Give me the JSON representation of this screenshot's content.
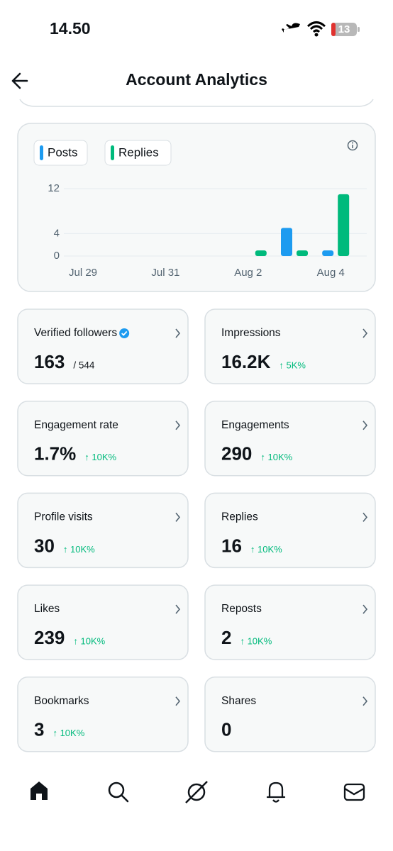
{
  "status_bar": {
    "time": "14.50",
    "battery": "13"
  },
  "header": {
    "title": "Account Analytics"
  },
  "chart_data": {
    "type": "bar",
    "categories": [
      "Jul 29",
      null,
      "Jul 31",
      null,
      "Aug 2",
      null,
      "Aug 4"
    ],
    "series": [
      {
        "name": "Posts",
        "color": "#1d9bf0",
        "values": [
          0,
          0,
          0,
          0,
          0,
          5,
          1
        ]
      },
      {
        "name": "Replies",
        "color": "#00ba7c",
        "values": [
          0,
          0,
          0,
          0,
          1,
          1,
          11
        ]
      }
    ],
    "ylim": [
      0,
      12
    ],
    "yticks": [
      0,
      4,
      12
    ],
    "grid": true
  },
  "metrics": [
    {
      "label": "Verified followers",
      "value": "163",
      "total": "/ 544"
    },
    {
      "label": "Impressions",
      "value": "16.2K",
      "change": "↑ 5K%"
    },
    {
      "label": "Engagement rate",
      "value": "1.7%",
      "change": "↑ 10K%"
    },
    {
      "label": "Engagements",
      "value": "290",
      "change": "↑ 10K%"
    },
    {
      "label": "Profile visits",
      "value": "30",
      "change": "↑ 10K%"
    },
    {
      "label": "Replies",
      "value": "16",
      "change": "↑ 10K%"
    },
    {
      "label": "Likes",
      "value": "239",
      "change": "↑ 10K%"
    },
    {
      "label": "Reposts",
      "value": "2",
      "change": "↑ 10K%"
    },
    {
      "label": "Bookmarks",
      "value": "3",
      "change": "↑ 10K%"
    },
    {
      "label": "Shares",
      "value": "0"
    }
  ]
}
